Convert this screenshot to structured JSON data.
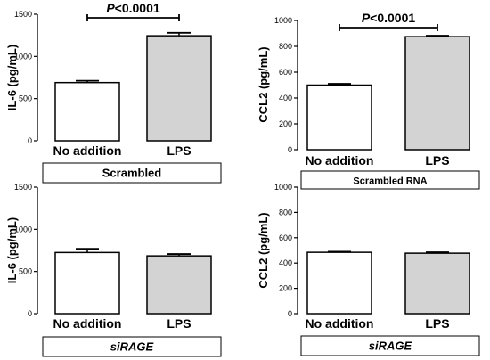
{
  "chart_data": [
    {
      "type": "bar",
      "ylabel": "IL-6 (pg/mL)",
      "categories": [
        "No addition",
        "LPS"
      ],
      "values": [
        690,
        1245
      ],
      "errors": [
        22,
        35
      ],
      "ylim": [
        0,
        1500
      ],
      "yticks": [
        0,
        500,
        1000,
        1500
      ],
      "bar_colors": [
        "#ffffff",
        "#d3d3d3"
      ],
      "significance": {
        "label": "P<0.0001",
        "between": [
          "No addition",
          "LPS"
        ]
      },
      "box_label": "Scrambled",
      "box_label_italic": false
    },
    {
      "type": "bar",
      "ylabel": "CCL2 (pg/mL)",
      "categories": [
        "No addition",
        "LPS"
      ],
      "values": [
        500,
        875
      ],
      "errors": [
        10,
        8
      ],
      "ylim": [
        0,
        1000
      ],
      "yticks": [
        0,
        200,
        400,
        600,
        800,
        1000
      ],
      "bar_colors": [
        "#ffffff",
        "#d3d3d3"
      ],
      "significance": {
        "label": "P<0.0001",
        "between": [
          "No addition",
          "LPS"
        ]
      },
      "box_label": "Scrambled RNA",
      "box_label_italic": false
    },
    {
      "type": "bar",
      "ylabel": "IL-6 (pg/mL)",
      "categories": [
        "No addition",
        "LPS"
      ],
      "values": [
        725,
        685
      ],
      "errors": [
        45,
        22
      ],
      "ylim": [
        0,
        1500
      ],
      "yticks": [
        0,
        500,
        1000,
        1500
      ],
      "bar_colors": [
        "#ffffff",
        "#d3d3d3"
      ],
      "box_label": "siRAGE",
      "box_label_italic": true
    },
    {
      "type": "bar",
      "ylabel": "CCL2 (pg/mL)",
      "categories": [
        "No addition",
        "LPS"
      ],
      "values": [
        485,
        478
      ],
      "errors": [
        5,
        8
      ],
      "ylim": [
        0,
        1000
      ],
      "yticks": [
        0,
        200,
        400,
        600,
        800,
        1000
      ],
      "bar_colors": [
        "#ffffff",
        "#d3d3d3"
      ],
      "box_label": "siRAGE",
      "box_label_italic": true
    }
  ]
}
